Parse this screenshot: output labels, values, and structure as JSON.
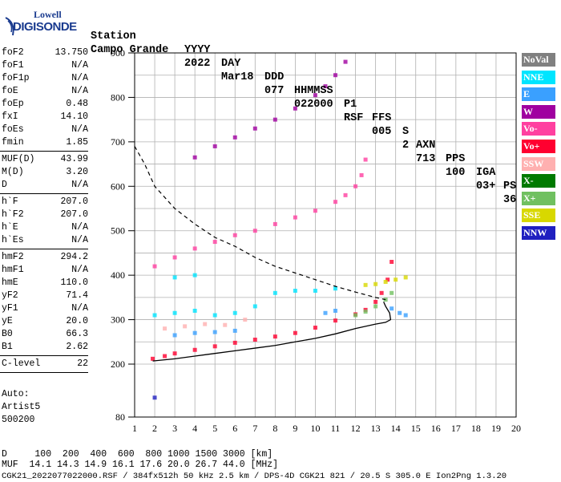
{
  "logo": {
    "line1": "Lowell",
    "line2": "DIGISONDE"
  },
  "header": {
    "row1": [
      "Station",
      "YYYY",
      "DAY",
      "DDD",
      "HHMMSS",
      "P1",
      "FFS",
      "S",
      "AXN",
      "PPS",
      "IGA",
      "PS"
    ],
    "row2": [
      "Campo Grande",
      "2022",
      "Mar18",
      "077",
      "022000",
      "RSF",
      "005",
      "2",
      "713",
      "100",
      "03+",
      "36"
    ]
  },
  "params_group1": [
    {
      "label": "foF2",
      "value": "13.750"
    },
    {
      "label": "foF1",
      "value": "N/A"
    },
    {
      "label": "foF1p",
      "value": "N/A"
    },
    {
      "label": "foE",
      "value": "N/A"
    },
    {
      "label": "foEp",
      "value": "0.48"
    },
    {
      "label": "fxI",
      "value": "14.10"
    },
    {
      "label": "foEs",
      "value": "N/A"
    },
    {
      "label": "fmin",
      "value": "1.85"
    }
  ],
  "params_group2": [
    {
      "label": "MUF(D)",
      "value": "43.99"
    },
    {
      "label": "M(D)",
      "value": "3.20"
    },
    {
      "label": "D",
      "value": "N/A"
    }
  ],
  "params_group3": [
    {
      "label": "h`F",
      "value": "207.0"
    },
    {
      "label": "h`F2",
      "value": "207.0"
    },
    {
      "label": "h`E",
      "value": "N/A"
    },
    {
      "label": "h`Es",
      "value": "N/A"
    }
  ],
  "params_group4": [
    {
      "label": "hmF2",
      "value": "294.2"
    },
    {
      "label": "hmF1",
      "value": "N/A"
    },
    {
      "label": "hmE",
      "value": "110.0"
    },
    {
      "label": "yF2",
      "value": "71.4"
    },
    {
      "label": "yF1",
      "value": "N/A"
    },
    {
      "label": "yE",
      "value": "20.0"
    },
    {
      "label": "B0",
      "value": "66.3"
    },
    {
      "label": "B1",
      "value": "2.62"
    }
  ],
  "params_group5": [
    {
      "label": "C-level",
      "value": "22"
    }
  ],
  "autoscaling": {
    "line1": "Auto:",
    "line2": "Artist5",
    "line3": "500200"
  },
  "legend": [
    {
      "label": "NoVal",
      "bg": "#808080",
      "fg": "#ffffff"
    },
    {
      "label": "NNE",
      "bg": "#00e5ff",
      "fg": "#ffffff"
    },
    {
      "label": "E",
      "bg": "#3aa0ff",
      "fg": "#ffffff"
    },
    {
      "label": "W",
      "bg": "#a000a0",
      "fg": "#ffffff"
    },
    {
      "label": "Vo-",
      "bg": "#ff40a0",
      "fg": "#ffffff"
    },
    {
      "label": "Vo+",
      "bg": "#ff0030",
      "fg": "#ffffff"
    },
    {
      "label": "SSW",
      "bg": "#ffb0b0",
      "fg": "#ffffff"
    },
    {
      "label": "X-",
      "bg": "#007a00",
      "fg": "#ffffff"
    },
    {
      "label": "X+",
      "bg": "#70c060",
      "fg": "#ffffff"
    },
    {
      "label": "SSE",
      "bg": "#d8d800",
      "fg": "#ffffff"
    },
    {
      "label": "NNW",
      "bg": "#2020c0",
      "fg": "#ffffff"
    }
  ],
  "bottom": {
    "line1": "D     100  200  400  600  800 1000 1500 3000 [km]",
    "line2": "MUF  14.1 14.3 14.9 16.1 17.6 20.0 26.7 44.0 [MHz]",
    "line3": "CGK21_2022077022000.RSF / 384fx512h 50 kHz 2.5 km / DPS-4D CGK21 821 / 20.5 S 305.0 E Ion2Png 1.3.20"
  },
  "chart_data": {
    "type": "scatter",
    "title": "",
    "xlabel": "",
    "ylabel": "",
    "xlim": [
      1,
      20
    ],
    "ylim": [
      80,
      900
    ],
    "x_ticks": [
      1,
      2,
      3,
      4,
      5,
      6,
      7,
      8,
      9,
      10,
      11,
      12,
      13,
      14,
      15,
      16,
      17,
      18,
      19,
      20
    ],
    "y_ticks": [
      80,
      200,
      300,
      400,
      500,
      600,
      700,
      800,
      900
    ],
    "grid": true,
    "series": [
      {
        "name": "Vo+",
        "color": "#ff0030",
        "points": [
          [
            1.9,
            212
          ],
          [
            2.5,
            218
          ],
          [
            3.0,
            224
          ],
          [
            4.0,
            232
          ],
          [
            5.0,
            240
          ],
          [
            6.0,
            248
          ],
          [
            7.0,
            255
          ],
          [
            8.0,
            262
          ],
          [
            9.0,
            270
          ],
          [
            10.0,
            282
          ],
          [
            11.0,
            298
          ],
          [
            12.0,
            312
          ],
          [
            12.5,
            322
          ],
          [
            13.0,
            340
          ],
          [
            13.3,
            360
          ],
          [
            13.6,
            390
          ],
          [
            13.8,
            430
          ]
        ]
      },
      {
        "name": "Vo-",
        "color": "#ff40a0",
        "points": [
          [
            2.0,
            420
          ],
          [
            3.0,
            440
          ],
          [
            4.0,
            460
          ],
          [
            5.0,
            475
          ],
          [
            6.0,
            490
          ],
          [
            7.0,
            500
          ],
          [
            8.0,
            515
          ],
          [
            9.0,
            530
          ],
          [
            10.0,
            545
          ],
          [
            11.0,
            565
          ],
          [
            11.5,
            580
          ],
          [
            12.0,
            600
          ],
          [
            12.3,
            625
          ],
          [
            12.5,
            660
          ]
        ]
      },
      {
        "name": "W",
        "color": "#a000a0",
        "points": [
          [
            4.0,
            665
          ],
          [
            5.0,
            690
          ],
          [
            6.0,
            710
          ],
          [
            7.0,
            730
          ],
          [
            8.0,
            750
          ],
          [
            9.0,
            775
          ],
          [
            10.0,
            805
          ],
          [
            10.5,
            825
          ],
          [
            11.0,
            850
          ],
          [
            11.5,
            880
          ]
        ]
      },
      {
        "name": "X+",
        "color": "#70c060",
        "points": [
          [
            12.0,
            310
          ],
          [
            12.5,
            318
          ],
          [
            13.0,
            330
          ],
          [
            13.5,
            345
          ],
          [
            13.8,
            360
          ]
        ]
      },
      {
        "name": "NNE",
        "color": "#00e5ff",
        "points": [
          [
            2.0,
            310
          ],
          [
            3.0,
            315
          ],
          [
            4.0,
            320
          ],
          [
            5.0,
            310
          ],
          [
            6.0,
            315
          ],
          [
            7.0,
            330
          ],
          [
            8.0,
            360
          ],
          [
            9.0,
            365
          ],
          [
            10.0,
            365
          ],
          [
            11.0,
            370
          ],
          [
            3.0,
            395
          ],
          [
            4.0,
            400
          ]
        ]
      },
      {
        "name": "E",
        "color": "#3aa0ff",
        "points": [
          [
            3.0,
            265
          ],
          [
            4.0,
            270
          ],
          [
            5.0,
            272
          ],
          [
            6.0,
            275
          ],
          [
            10.5,
            315
          ],
          [
            11.0,
            320
          ],
          [
            13.8,
            325
          ],
          [
            14.2,
            315
          ],
          [
            14.5,
            310
          ]
        ]
      },
      {
        "name": "SSE",
        "color": "#d8d800",
        "points": [
          [
            12.5,
            378
          ],
          [
            13.0,
            380
          ],
          [
            13.5,
            385
          ],
          [
            14.0,
            390
          ],
          [
            14.5,
            395
          ]
        ]
      },
      {
        "name": "SSW",
        "color": "#ffb0b0",
        "points": [
          [
            2.5,
            280
          ],
          [
            3.5,
            285
          ],
          [
            4.5,
            290
          ],
          [
            5.5,
            288
          ],
          [
            6.5,
            300
          ]
        ]
      },
      {
        "name": "NNW",
        "color": "#2020c0",
        "points": [
          [
            2.0,
            124
          ]
        ]
      }
    ],
    "lines": {
      "profile": [
        [
          1.9,
          207
        ],
        [
          3,
          212
        ],
        [
          4,
          218
        ],
        [
          5,
          224
        ],
        [
          6,
          230
        ],
        [
          7,
          236
        ],
        [
          8,
          242
        ],
        [
          9,
          250
        ],
        [
          10,
          258
        ],
        [
          11,
          268
        ],
        [
          12,
          280
        ],
        [
          13,
          290
        ],
        [
          13.5,
          294
        ],
        [
          13.75,
          300
        ],
        [
          13.7,
          315
        ],
        [
          13.5,
          330
        ],
        [
          13.4,
          340
        ]
      ],
      "muf_dashed": [
        [
          1,
          690
        ],
        [
          1.5,
          650
        ],
        [
          2,
          600
        ],
        [
          3,
          550
        ],
        [
          4,
          515
        ],
        [
          5,
          485
        ],
        [
          6,
          465
        ],
        [
          7,
          440
        ],
        [
          8,
          420
        ],
        [
          9,
          405
        ],
        [
          10,
          390
        ],
        [
          11,
          375
        ],
        [
          12,
          362
        ],
        [
          13,
          350
        ],
        [
          13.5,
          345
        ]
      ]
    }
  }
}
